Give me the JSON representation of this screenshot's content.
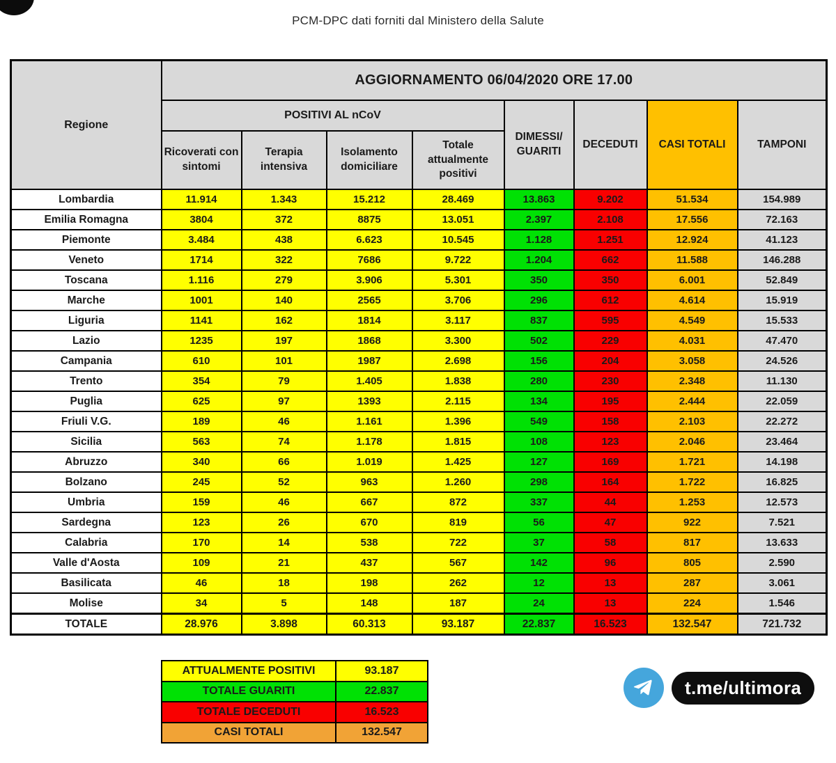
{
  "page_title": "PCM-DPC dati forniti dal Ministero della Salute",
  "chart_data": {
    "type": "table",
    "title": "AGGIORNAMENTO 06/04/2020 ORE 17.00",
    "group_header": "POSITIVI AL nCoV",
    "region_column_header": "Regione",
    "columns": [
      "Ricoverati con sintomi",
      "Terapia intensiva",
      "Isolamento domiciliare",
      "Totale attualmente positivi",
      "DIMESSI/ GUARITI",
      "DECEDUTI",
      "CASI TOTALI",
      "TAMPONI"
    ],
    "rows": [
      {
        "regione": "Lombardia",
        "values": [
          "11.914",
          "1.343",
          "15.212",
          "28.469",
          "13.863",
          "9.202",
          "51.534",
          "154.989"
        ]
      },
      {
        "regione": "Emilia Romagna",
        "values": [
          "3804",
          "372",
          "8875",
          "13.051",
          "2.397",
          "2.108",
          "17.556",
          "72.163"
        ]
      },
      {
        "regione": "Piemonte",
        "values": [
          "3.484",
          "438",
          "6.623",
          "10.545",
          "1.128",
          "1.251",
          "12.924",
          "41.123"
        ]
      },
      {
        "regione": "Veneto",
        "values": [
          "1714",
          "322",
          "7686",
          "9.722",
          "1.204",
          "662",
          "11.588",
          "146.288"
        ]
      },
      {
        "regione": "Toscana",
        "values": [
          "1.116",
          "279",
          "3.906",
          "5.301",
          "350",
          "350",
          "6.001",
          "52.849"
        ]
      },
      {
        "regione": "Marche",
        "values": [
          "1001",
          "140",
          "2565",
          "3.706",
          "296",
          "612",
          "4.614",
          "15.919"
        ]
      },
      {
        "regione": "Liguria",
        "values": [
          "1141",
          "162",
          "1814",
          "3.117",
          "837",
          "595",
          "4.549",
          "15.533"
        ]
      },
      {
        "regione": "Lazio",
        "values": [
          "1235",
          "197",
          "1868",
          "3.300",
          "502",
          "229",
          "4.031",
          "47.470"
        ]
      },
      {
        "regione": "Campania",
        "values": [
          "610",
          "101",
          "1987",
          "2.698",
          "156",
          "204",
          "3.058",
          "24.526"
        ]
      },
      {
        "regione": "Trento",
        "values": [
          "354",
          "79",
          "1.405",
          "1.838",
          "280",
          "230",
          "2.348",
          "11.130"
        ]
      },
      {
        "regione": "Puglia",
        "values": [
          "625",
          "97",
          "1393",
          "2.115",
          "134",
          "195",
          "2.444",
          "22.059"
        ]
      },
      {
        "regione": "Friuli V.G.",
        "values": [
          "189",
          "46",
          "1.161",
          "1.396",
          "549",
          "158",
          "2.103",
          "22.272"
        ]
      },
      {
        "regione": "Sicilia",
        "values": [
          "563",
          "74",
          "1.178",
          "1.815",
          "108",
          "123",
          "2.046",
          "23.464"
        ]
      },
      {
        "regione": "Abruzzo",
        "values": [
          "340",
          "66",
          "1.019",
          "1.425",
          "127",
          "169",
          "1.721",
          "14.198"
        ]
      },
      {
        "regione": "Bolzano",
        "values": [
          "245",
          "52",
          "963",
          "1.260",
          "298",
          "164",
          "1.722",
          "16.825"
        ]
      },
      {
        "regione": "Umbria",
        "values": [
          "159",
          "46",
          "667",
          "872",
          "337",
          "44",
          "1.253",
          "12.573"
        ]
      },
      {
        "regione": "Sardegna",
        "values": [
          "123",
          "26",
          "670",
          "819",
          "56",
          "47",
          "922",
          "7.521"
        ]
      },
      {
        "regione": "Calabria",
        "values": [
          "170",
          "14",
          "538",
          "722",
          "37",
          "58",
          "817",
          "13.633"
        ]
      },
      {
        "regione": "Valle d'Aosta",
        "values": [
          "109",
          "21",
          "437",
          "567",
          "142",
          "96",
          "805",
          "2.590"
        ]
      },
      {
        "regione": "Basilicata",
        "values": [
          "46",
          "18",
          "198",
          "262",
          "12",
          "13",
          "287",
          "3.061"
        ]
      },
      {
        "regione": "Molise",
        "values": [
          "34",
          "5",
          "148",
          "187",
          "24",
          "13",
          "224",
          "1.546"
        ]
      }
    ],
    "total_row": {
      "regione": "TOTALE",
      "values": [
        "28.976",
        "3.898",
        "60.313",
        "93.187",
        "22.837",
        "16.523",
        "132.547",
        "721.732"
      ]
    }
  },
  "summary": {
    "rows": [
      {
        "label": "ATTUALMENTE POSITIVI",
        "value": "93.187",
        "color": "#FFFF00"
      },
      {
        "label": "TOTALE GUARITI",
        "value": "22.837",
        "color": "#00E104"
      },
      {
        "label": "TOTALE DECEDUTI",
        "value": "16.523",
        "color": "#F90000"
      },
      {
        "label": "CASI TOTALI",
        "value": "132.547",
        "color": "#F1A336"
      }
    ]
  },
  "footer": {
    "telegram_handle": "t.me/ultimora"
  },
  "colors": {
    "yellow": "#FFFF00",
    "green": "#00E104",
    "red": "#F90000",
    "orange": "#FFC000",
    "tamponi_gray": "#D9D9D9",
    "header_gray": "#D9D9D9",
    "telegram_blue": "#45A6DC",
    "pill_black": "#0E0E0E"
  }
}
